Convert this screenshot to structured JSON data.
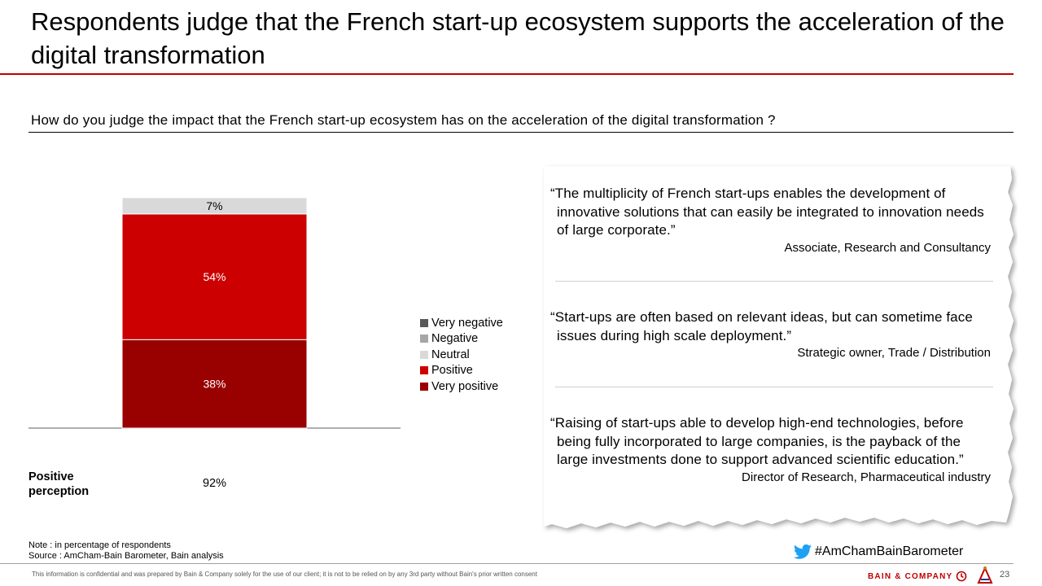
{
  "header": {
    "title": "Respondents judge that the French start-up ecosystem supports the acceleration of the digital transformation",
    "question": "How do you judge the impact that the French start-up ecosystem has on the acceleration of the digital transformation ?"
  },
  "chart_data": {
    "type": "bar",
    "stacked": true,
    "categories": [
      ""
    ],
    "series": [
      {
        "name": "Very negative",
        "values": [
          0
        ],
        "color": "#595959"
      },
      {
        "name": "Negative",
        "values": [
          0
        ],
        "color": "#a6a6a6"
      },
      {
        "name": "Neutral",
        "values": [
          7
        ],
        "color": "#d9d9d9"
      },
      {
        "name": "Positive",
        "values": [
          54
        ],
        "color": "#cc0000"
      },
      {
        "name": "Very positive",
        "values": [
          38
        ],
        "color": "#990000"
      }
    ],
    "labels": [
      "",
      "",
      "7%",
      "54%",
      "38%"
    ],
    "ylim": [
      0,
      100
    ],
    "legend_position": "right",
    "grid": false
  },
  "legend": {
    "items": [
      {
        "label": "Very negative",
        "color": "#595959"
      },
      {
        "label": "Negative",
        "color": "#a6a6a6"
      },
      {
        "label": "Neutral",
        "color": "#d9d9d9"
      },
      {
        "label": "Positive",
        "color": "#cc0000"
      },
      {
        "label": "Very positive",
        "color": "#990000"
      }
    ]
  },
  "positive_perception": {
    "label": "Positive perception",
    "value": "92%"
  },
  "quotes": [
    {
      "text": "“The multiplicity of French start-ups enables the development of innovative solutions that can easily be integrated to innovation needs of large corporate.”",
      "attribution": "Associate, Research and Consultancy"
    },
    {
      "text": "“Start-ups are often based on relevant ideas, but can sometime face issues during high scale deployment.”",
      "attribution": "Strategic owner, Trade / Distribution"
    },
    {
      "text": "“Raising of start-ups able to develop high-end technologies, before being fully incorporated to large companies, is the payback of the large investments done to support advanced scientific education.”",
      "attribution": "Director of Research, Pharmaceutical industry"
    }
  ],
  "notes": {
    "note": "Note : in percentage of respondents",
    "source": "Source : AmCham-Bain Barometer, Bain analysis"
  },
  "footer": {
    "disclaimer": "This information is confidential and was prepared by Bain & Company solely for the use of our client; it is not to be relied on by any 3rd party without Bain's prior written consent",
    "hashtag": "#AmChamBainBarometer",
    "brand": "BAIN & COMPANY",
    "page_number": "23"
  },
  "colors": {
    "accent": "#c00000",
    "twitter": "#1da1f2"
  }
}
